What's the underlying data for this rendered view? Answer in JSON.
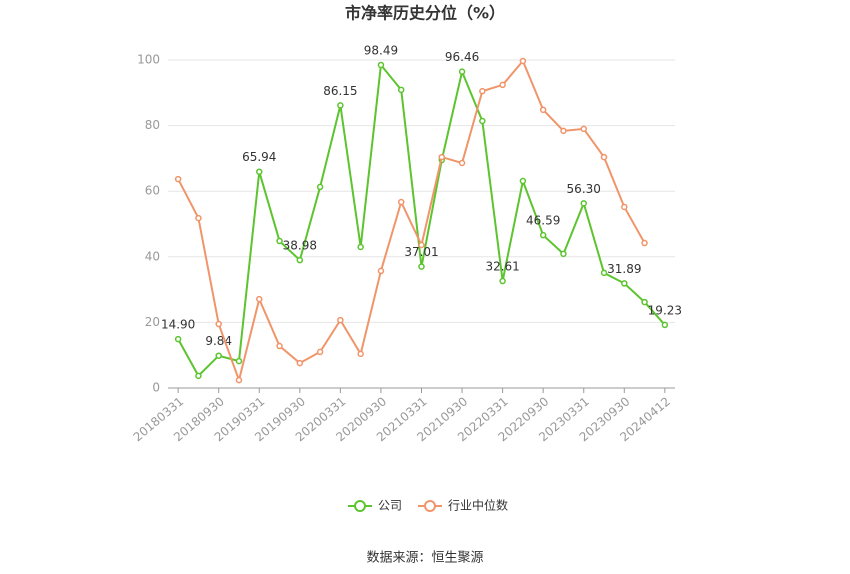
{
  "chart_data": {
    "type": "line",
    "title": "市净率历史分位（%）",
    "source": "数据来源：恒生聚源",
    "categories": [
      "20180331",
      null,
      "20180930",
      null,
      "20190331",
      null,
      "20190930",
      null,
      "20200331",
      null,
      "20200930",
      null,
      "20210331",
      null,
      "20210930",
      null,
      "20220331",
      null,
      "20220930",
      null,
      "20230331",
      null,
      "20230930",
      null,
      "20240412"
    ],
    "series": [
      {
        "name": "公司",
        "color": "#5cc42e",
        "values": [
          14.9,
          3.7,
          9.84,
          8.2,
          65.94,
          44.8,
          38.98,
          61.3,
          86.15,
          43.0,
          98.49,
          90.9,
          37.01,
          69.5,
          96.46,
          81.4,
          32.61,
          63.1,
          46.59,
          40.9,
          56.3,
          35.1,
          31.89,
          26.2,
          19.23
        ],
        "value_labels": [
          "14.90",
          null,
          "9.84",
          null,
          "65.94",
          null,
          "38.98",
          null,
          "86.15",
          null,
          "98.49",
          null,
          "37.01",
          null,
          "96.46",
          null,
          "32.61",
          null,
          "46.59",
          null,
          "56.30",
          null,
          "31.89",
          null,
          "19.23"
        ]
      },
      {
        "name": "行业中位数",
        "color": "#f0956a",
        "values": [
          63.7,
          51.8,
          19.5,
          2.4,
          27.1,
          12.8,
          7.6,
          11.0,
          20.7,
          10.4,
          35.7,
          56.7,
          43.6,
          70.4,
          68.6,
          90.5,
          92.4,
          99.7,
          84.8,
          78.4,
          79.0,
          70.4,
          55.2,
          44.2,
          null
        ]
      }
    ],
    "ylim": [
      0,
      100
    ],
    "yticks": [
      0,
      20,
      40,
      60,
      80,
      100
    ],
    "grid": true,
    "legend": "bottom"
  }
}
